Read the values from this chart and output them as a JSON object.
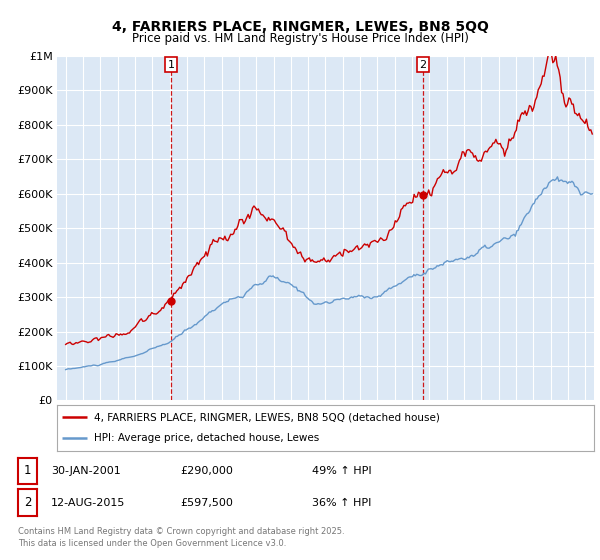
{
  "title_line1": "4, FARRIERS PLACE, RINGMER, LEWES, BN8 5QQ",
  "title_line2": "Price paid vs. HM Land Registry's House Price Index (HPI)",
  "legend_label_red": "4, FARRIERS PLACE, RINGMER, LEWES, BN8 5QQ (detached house)",
  "legend_label_blue": "HPI: Average price, detached house, Lewes",
  "annotation1_date": "30-JAN-2001",
  "annotation1_price": "£290,000",
  "annotation1_hpi": "49% ↑ HPI",
  "annotation2_date": "12-AUG-2015",
  "annotation2_price": "£597,500",
  "annotation2_hpi": "36% ↑ HPI",
  "purchase1_year": 2001.08,
  "purchase1_price": 290000,
  "purchase2_year": 2015.62,
  "purchase2_price": 597500,
  "color_red": "#cc0000",
  "color_blue": "#6699cc",
  "color_dashed": "#cc0000",
  "chart_bg": "#dce8f5",
  "background_color": "#ffffff",
  "grid_color": "#ffffff",
  "footer_text": "Contains HM Land Registry data © Crown copyright and database right 2025.\nThis data is licensed under the Open Government Licence v3.0.",
  "ylim_max": 1000000,
  "ylim_min": 0,
  "xmin": 1994.5,
  "xmax": 2025.5
}
